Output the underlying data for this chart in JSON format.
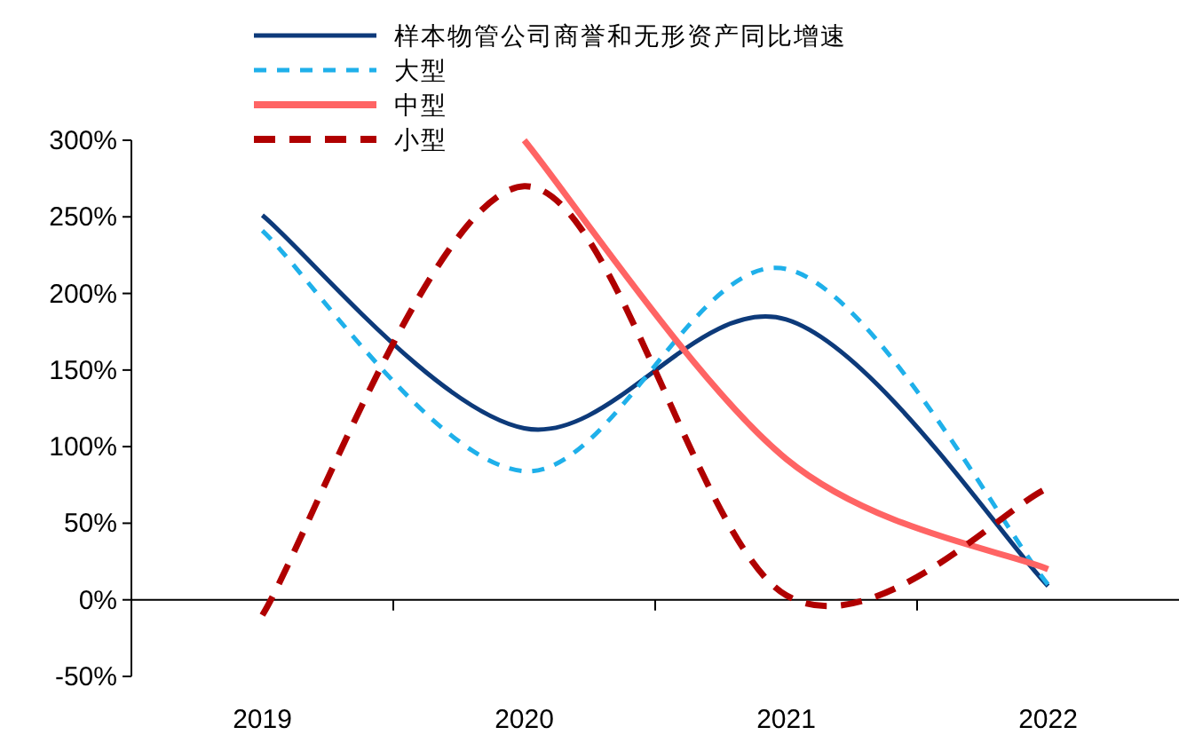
{
  "chart_data": {
    "type": "line",
    "categories": [
      "2019",
      "2020",
      "2021",
      "2022"
    ],
    "series": [
      {
        "name": "样本物管公司商誉和无形资产同比增速",
        "color": "#0d3a7a",
        "line_style": "solid",
        "values": [
          251,
          112,
          183,
          9
        ]
      },
      {
        "name": "大型",
        "color": "#1fb0ea",
        "line_style": "dashed",
        "values": [
          241,
          84,
          216,
          10
        ]
      },
      {
        "name": "中型",
        "color": "#ff6464",
        "line_style": "solid",
        "values": [
          null,
          300,
          92,
          20
        ]
      },
      {
        "name": "小型",
        "color": "#b00000",
        "line_style": "dashed",
        "values": [
          -10,
          270,
          3,
          73
        ]
      }
    ],
    "ylim": [
      -50,
      300
    ],
    "yticks": [
      {
        "value": -50,
        "label": "-50%"
      },
      {
        "value": 0,
        "label": "0%"
      },
      {
        "value": 50,
        "label": "50%"
      },
      {
        "value": 100,
        "label": "100%"
      },
      {
        "value": 150,
        "label": "150%"
      },
      {
        "value": 200,
        "label": "200%"
      },
      {
        "value": 250,
        "label": "250%"
      },
      {
        "value": 300,
        "label": "300%"
      }
    ],
    "legend": "top",
    "marker": "none"
  }
}
